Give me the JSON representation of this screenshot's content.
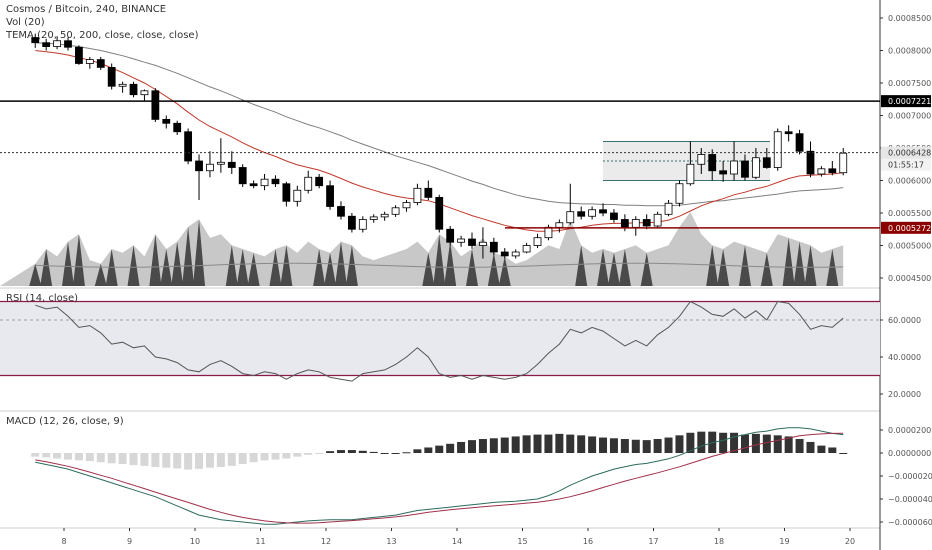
{
  "header": {
    "title": "Cosmos / Bitcoin, 240, BINANCE",
    "vol_label": "Vol (20)",
    "tema_label": "TEMA (20, 50, 200, close, close, close)"
  },
  "rsi_panel": {
    "label": "RSI (14, close)"
  },
  "macd_panel": {
    "label": "MACD (12, 26, close, 9)"
  },
  "price_axis": {
    "ticks": [
      "0.0008500",
      "0.0008000",
      "0.0007500",
      "0.0007000",
      "0.0006500",
      "0.0006000",
      "0.0005500",
      "0.0005000",
      "0.0004500"
    ],
    "tick_values": [
      0.00085,
      0.0008,
      0.00075,
      0.0007,
      0.00065,
      0.0006,
      0.00055,
      0.0005,
      0.00045
    ],
    "level_upper_label": "0.0007221",
    "level_upper_value": 0.0007221,
    "level_lower_label": "0.0005272",
    "level_lower_value": 0.0005272,
    "current_label": "0.0006428",
    "current_value": 0.0006428,
    "countdown_label": "01:55:17"
  },
  "rsi_axis": {
    "ticks": [
      "60.0000",
      "40.0000",
      "20.0000"
    ],
    "tick_values": [
      60,
      40,
      20
    ],
    "upper_band": 70,
    "lower_band": 30
  },
  "macd_axis": {
    "ticks": [
      "0.0000200",
      "0.0000000",
      "−0.0000200",
      "−0.0000400",
      "−0.0000600"
    ],
    "tick_values": [
      2e-05,
      0,
      -2e-05,
      -4e-05,
      -6e-05
    ]
  },
  "time_axis": {
    "labels": [
      "8",
      "9",
      "10",
      "11",
      "12",
      "13",
      "14",
      "15",
      "16",
      "17",
      "18",
      "19",
      "20"
    ]
  },
  "colors": {
    "bull": "#ffffff",
    "bear": "#000000",
    "ema_fast": "#c0392b",
    "ema_slow": "#7f7f7f",
    "level_upper": "#000000",
    "level_lower": "#8b0000",
    "rsi_band": "#8b1a4a",
    "macd_line": "#2e6b5e",
    "signal_line": "#a0304a",
    "volume_light": "#c8c8c8",
    "volume_dark": "#4a4a4a"
  },
  "chart_data": {
    "type": "candlestick",
    "x_start_day": 7.5,
    "candle_step_days": 0.1667,
    "candles": [
      [
        0.00082,
        0.000826,
        0.000804,
        0.000812
      ],
      [
        0.000812,
        0.000818,
        0.0008,
        0.000806
      ],
      [
        0.000806,
        0.000822,
        0.000802,
        0.000815
      ],
      [
        0.000815,
        0.00082,
        0.0008,
        0.000805
      ],
      [
        0.000805,
        0.000808,
        0.000778,
        0.00078
      ],
      [
        0.00078,
        0.00079,
        0.000772,
        0.000786
      ],
      [
        0.000786,
        0.00079,
        0.00077,
        0.000774
      ],
      [
        0.000774,
        0.00078,
        0.00074,
        0.000745
      ],
      [
        0.000745,
        0.000752,
        0.000735,
        0.000748
      ],
      [
        0.000748,
        0.000752,
        0.000728,
        0.000732
      ],
      [
        0.000732,
        0.00074,
        0.000722,
        0.000738
      ],
      [
        0.000738,
        0.000742,
        0.00069,
        0.000694
      ],
      [
        0.000694,
        0.0007,
        0.00068,
        0.000688
      ],
      [
        0.000688,
        0.000692,
        0.00067,
        0.000675
      ],
      [
        0.000675,
        0.00068,
        0.000625,
        0.00063
      ],
      [
        0.00063,
        0.00064,
        0.00057,
        0.000615
      ],
      [
        0.000615,
        0.000645,
        0.000605,
        0.000625
      ],
      [
        0.000625,
        0.000665,
        0.000612,
        0.000628
      ],
      [
        0.000628,
        0.000645,
        0.00061,
        0.00062
      ],
      [
        0.00062,
        0.000625,
        0.00059,
        0.000595
      ],
      [
        0.000595,
        0.0006,
        0.000588,
        0.000592
      ],
      [
        0.000592,
        0.00061,
        0.000585,
        0.000602
      ],
      [
        0.000602,
        0.000608,
        0.00059,
        0.000595
      ],
      [
        0.000595,
        0.000598,
        0.00056,
        0.000568
      ],
      [
        0.000568,
        0.000592,
        0.00056,
        0.000585
      ],
      [
        0.000585,
        0.000615,
        0.00058,
        0.000605
      ],
      [
        0.000605,
        0.00061,
        0.000588,
        0.000592
      ],
      [
        0.000592,
        0.0006,
        0.000555,
        0.00056
      ],
      [
        0.00056,
        0.000568,
        0.00054,
        0.000545
      ],
      [
        0.000545,
        0.00055,
        0.00052,
        0.000525
      ],
      [
        0.000525,
        0.000545,
        0.00052,
        0.00054
      ],
      [
        0.00054,
        0.000548,
        0.000535,
        0.000544
      ],
      [
        0.000544,
        0.000552,
        0.000538,
        0.000548
      ],
      [
        0.000548,
        0.000562,
        0.000544,
        0.000558
      ],
      [
        0.000558,
        0.00057,
        0.000552,
        0.000566
      ],
      [
        0.000566,
        0.000595,
        0.000562,
        0.000588
      ],
      [
        0.000588,
        0.0006,
        0.00057,
        0.000574
      ],
      [
        0.000574,
        0.000578,
        0.00052,
        0.000525
      ],
      [
        0.000525,
        0.00053,
        0.0005,
        0.000505
      ],
      [
        0.000505,
        0.000515,
        0.000498,
        0.00051
      ],
      [
        0.00051,
        0.00052,
        0.000495,
        0.0005
      ],
      [
        0.0005,
        0.000528,
        0.00048,
        0.000505
      ],
      [
        0.000505,
        0.000512,
        0.000485,
        0.00049
      ],
      [
        0.00049,
        0.000496,
        0.00048,
        0.000484
      ],
      [
        0.000484,
        0.000494,
        0.00048,
        0.00049
      ],
      [
        0.00049,
        0.000504,
        0.000488,
        0.0005
      ],
      [
        0.0005,
        0.000518,
        0.000496,
        0.000512
      ],
      [
        0.000512,
        0.000532,
        0.000508,
        0.000528
      ],
      [
        0.000528,
        0.00054,
        0.00052,
        0.000535
      ],
      [
        0.000535,
        0.000595,
        0.000532,
        0.000552
      ],
      [
        0.000552,
        0.00056,
        0.00054,
        0.000545
      ],
      [
        0.000545,
        0.00056,
        0.00054,
        0.000555
      ],
      [
        0.000555,
        0.000565,
        0.000545,
        0.00055
      ],
      [
        0.00055,
        0.000556,
        0.000535,
        0.00054
      ],
      [
        0.00054,
        0.000548,
        0.000522,
        0.000528
      ],
      [
        0.000528,
        0.000545,
        0.000515,
        0.00054
      ],
      [
        0.00054,
        0.000548,
        0.000525,
        0.00053
      ],
      [
        0.00053,
        0.000552,
        0.000528,
        0.000548
      ],
      [
        0.000548,
        0.00057,
        0.000545,
        0.000565
      ],
      [
        0.000565,
        0.0006,
        0.00056,
        0.000595
      ],
      [
        0.000595,
        0.00066,
        0.000592,
        0.000625
      ],
      [
        0.000625,
        0.00065,
        0.00061,
        0.00064
      ],
      [
        0.00064,
        0.000648,
        0.0006,
        0.000615
      ],
      [
        0.000615,
        0.00063,
        0.000598,
        0.00061
      ],
      [
        0.00061,
        0.00066,
        0.0006,
        0.00063
      ],
      [
        0.00063,
        0.00064,
        0.0006,
        0.000605
      ],
      [
        0.000605,
        0.00065,
        0.000602,
        0.000635
      ],
      [
        0.000635,
        0.00065,
        0.000618,
        0.00062
      ],
      [
        0.00062,
        0.00068,
        0.000615,
        0.000675
      ],
      [
        0.000675,
        0.000685,
        0.00066,
        0.000672
      ],
      [
        0.000672,
        0.000678,
        0.00064,
        0.000645
      ],
      [
        0.000645,
        0.00066,
        0.000605,
        0.00061
      ],
      [
        0.00061,
        0.000622,
        0.000606,
        0.000618
      ],
      [
        0.000618,
        0.00063,
        0.000608,
        0.000612
      ],
      [
        0.000612,
        0.00065,
        0.000608,
        0.000642
      ]
    ],
    "ema_fast": [
      0.0008,
      0.000798,
      0.000796,
      0.000793,
      0.000789,
      0.000785,
      0.00078,
      0.000773,
      0.000766,
      0.000758,
      0.00075,
      0.00074,
      0.000729,
      0.000718,
      0.000705,
      0.000693,
      0.000683,
      0.000675,
      0.000667,
      0.000658,
      0.00065,
      0.000643,
      0.000637,
      0.00063,
      0.000624,
      0.00062,
      0.000616,
      0.00061,
      0.000603,
      0.000596,
      0.00059,
      0.000585,
      0.00058,
      0.000576,
      0.000573,
      0.000571,
      0.000569,
      0.000564,
      0.000558,
      0.000552,
      0.000546,
      0.000541,
      0.000536,
      0.000531,
      0.000527,
      0.000524,
      0.000522,
      0.000522,
      0.000523,
      0.000526,
      0.000528,
      0.000531,
      0.000533,
      0.000534,
      0.000534,
      0.000535,
      0.000535,
      0.000536,
      0.000539,
      0.000545,
      0.000553,
      0.000561,
      0.000567,
      0.000572,
      0.000578,
      0.000582,
      0.000587,
      0.000591,
      0.000597,
      0.000603,
      0.000607,
      0.000608,
      0.000609,
      0.00061,
      0.000612
    ],
    "ema_slow": [
      0.000812,
      0.000811,
      0.00081,
      0.000808,
      0.000806,
      0.000803,
      0.0008,
      0.000796,
      0.000792,
      0.000787,
      0.000782,
      0.000777,
      0.000771,
      0.000765,
      0.000758,
      0.000751,
      0.000744,
      0.000738,
      0.000731,
      0.000724,
      0.000717,
      0.000711,
      0.000705,
      0.000698,
      0.000692,
      0.000686,
      0.000681,
      0.000675,
      0.000669,
      0.000662,
      0.000656,
      0.00065,
      0.000644,
      0.000638,
      0.000633,
      0.000628,
      0.000623,
      0.000617,
      0.000611,
      0.000605,
      0.000599,
      0.000594,
      0.000588,
      0.000583,
      0.000578,
      0.000574,
      0.000571,
      0.000568,
      0.000566,
      0.000565,
      0.000564,
      0.000564,
      0.000563,
      0.000563,
      0.000562,
      0.000562,
      0.000561,
      0.000561,
      0.000561,
      0.000562,
      0.000564,
      0.000566,
      0.000568,
      0.000569,
      0.000571,
      0.000573,
      0.000575,
      0.000577,
      0.000579,
      0.000582,
      0.000584,
      0.000585,
      0.000586,
      0.000587,
      0.000589
    ],
    "volume": [
      0.3,
      0.5,
      0.4,
      0.6,
      0.7,
      0.35,
      0.3,
      0.5,
      0.45,
      0.55,
      0.4,
      0.7,
      0.5,
      0.6,
      0.8,
      0.9,
      0.65,
      0.7,
      0.55,
      0.5,
      0.45,
      0.4,
      0.5,
      0.55,
      0.45,
      0.6,
      0.5,
      0.45,
      0.6,
      0.55,
      0.4,
      0.35,
      0.4,
      0.45,
      0.5,
      0.6,
      0.45,
      0.7,
      0.6,
      0.4,
      0.5,
      0.65,
      0.45,
      0.4,
      0.3,
      0.35,
      0.45,
      0.55,
      0.5,
      0.9,
      0.55,
      0.45,
      0.5,
      0.45,
      0.5,
      0.55,
      0.45,
      0.5,
      0.55,
      0.8,
      1.0,
      0.7,
      0.55,
      0.5,
      0.6,
      0.55,
      0.5,
      0.45,
      0.7,
      0.65,
      0.6,
      0.55,
      0.45,
      0.5,
      0.55
    ],
    "rsi": [
      68,
      66,
      67,
      62,
      56,
      57,
      53,
      47,
      48,
      45,
      46,
      40,
      39,
      37,
      33,
      32,
      36,
      38,
      35,
      31,
      30,
      32,
      31,
      28,
      31,
      33,
      32,
      29,
      28,
      27,
      31,
      32,
      33,
      36,
      40,
      45,
      40,
      31,
      29,
      30,
      28,
      30,
      29,
      28,
      29,
      31,
      36,
      42,
      47,
      55,
      53,
      56,
      54,
      50,
      46,
      49,
      46,
      52,
      56,
      62,
      70,
      67,
      63,
      62,
      66,
      61,
      65,
      60,
      70,
      69,
      63,
      55,
      57,
      56,
      61
    ],
    "macd_hist": [
      -0.1,
      -0.12,
      -0.15,
      -0.18,
      -0.2,
      -0.22,
      -0.25,
      -0.28,
      -0.3,
      -0.33,
      -0.35,
      -0.38,
      -0.4,
      -0.42,
      -0.45,
      -0.43,
      -0.4,
      -0.38,
      -0.35,
      -0.3,
      -0.25,
      -0.2,
      -0.18,
      -0.15,
      -0.1,
      -0.05,
      -0.02,
      0.05,
      0.08,
      0.08,
      0.06,
      0.03,
      0.0,
      0.0,
      0.02,
      0.1,
      0.15,
      0.2,
      0.25,
      0.3,
      0.35,
      0.38,
      0.4,
      0.42,
      0.45,
      0.48,
      0.5,
      0.5,
      0.52,
      0.5,
      0.48,
      0.45,
      0.42,
      0.4,
      0.38,
      0.36,
      0.35,
      0.38,
      0.42,
      0.48,
      0.55,
      0.58,
      0.58,
      0.55,
      0.55,
      0.5,
      0.52,
      0.5,
      0.48,
      0.45,
      0.38,
      0.3,
      0.2,
      0.15,
      0.0
    ],
    "macd_line": [
      -0.4,
      -0.5,
      -0.6,
      -0.7,
      -0.85,
      -1.0,
      -1.15,
      -1.3,
      -1.45,
      -1.6,
      -1.75,
      -1.9,
      -2.1,
      -2.3,
      -2.5,
      -2.7,
      -2.8,
      -2.9,
      -2.95,
      -3.0,
      -3.05,
      -3.1,
      -3.1,
      -3.05,
      -3.0,
      -2.95,
      -2.92,
      -2.9,
      -2.9,
      -2.9,
      -2.85,
      -2.8,
      -2.75,
      -2.7,
      -2.6,
      -2.5,
      -2.45,
      -2.4,
      -2.35,
      -2.3,
      -2.25,
      -2.2,
      -2.15,
      -2.12,
      -2.1,
      -2.05,
      -2.0,
      -1.85,
      -1.65,
      -1.4,
      -1.2,
      -1.0,
      -0.85,
      -0.7,
      -0.6,
      -0.5,
      -0.45,
      -0.35,
      -0.25,
      -0.1,
      0.1,
      0.3,
      0.45,
      0.55,
      0.7,
      0.8,
      0.9,
      0.95,
      1.05,
      1.1,
      1.1,
      1.05,
      0.95,
      0.85,
      0.8
    ],
    "signal_line": [
      -0.3,
      -0.38,
      -0.48,
      -0.58,
      -0.7,
      -0.83,
      -0.97,
      -1.1,
      -1.25,
      -1.4,
      -1.55,
      -1.7,
      -1.85,
      -2.0,
      -2.15,
      -2.3,
      -2.45,
      -2.58,
      -2.7,
      -2.8,
      -2.88,
      -2.95,
      -3.0,
      -3.03,
      -3.05,
      -3.05,
      -3.03,
      -3.0,
      -2.97,
      -2.94,
      -2.9,
      -2.86,
      -2.82,
      -2.78,
      -2.72,
      -2.65,
      -2.58,
      -2.52,
      -2.47,
      -2.42,
      -2.38,
      -2.34,
      -2.3,
      -2.26,
      -2.22,
      -2.18,
      -2.14,
      -2.08,
      -2.0,
      -1.9,
      -1.78,
      -1.65,
      -1.5,
      -1.36,
      -1.22,
      -1.1,
      -0.98,
      -0.86,
      -0.73,
      -0.6,
      -0.45,
      -0.3,
      -0.15,
      -0.02,
      0.1,
      0.22,
      0.35,
      0.45,
      0.55,
      0.65,
      0.75,
      0.8,
      0.83,
      0.85,
      0.86
    ]
  }
}
